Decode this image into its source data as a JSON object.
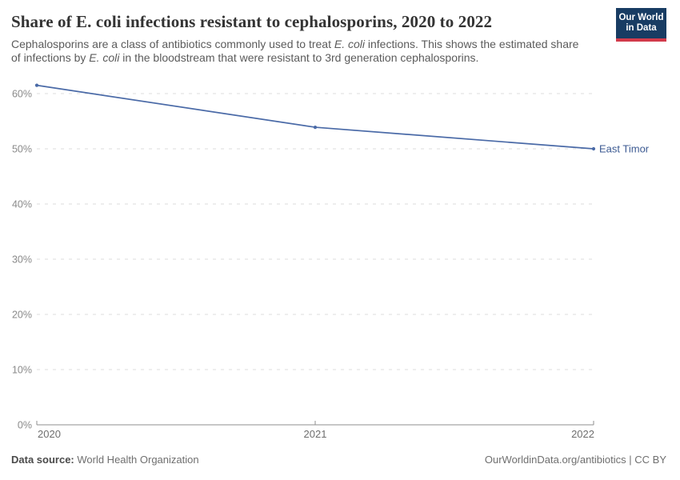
{
  "header": {
    "title": "Share of E. coli infections resistant to cephalosporins, 2020 to 2022",
    "subtitle_segments": [
      {
        "t": "Cephalosporins are a class of antibiotics commonly used to treat ",
        "i": false
      },
      {
        "t": "E. coli",
        "i": true
      },
      {
        "t": " infections. This shows the estimated share of infections by ",
        "i": false
      },
      {
        "t": "E. coli",
        "i": true
      },
      {
        "t": " in the bloodstream that were resistant to 3rd generation cephalosporins.",
        "i": false
      }
    ],
    "logo": {
      "line1": "Our World",
      "line2": "in Data",
      "bg_color": "#183c63",
      "bar_color": "#d33a4b"
    }
  },
  "chart_data": {
    "type": "line",
    "title": "Share of E. coli infections resistant to cephalosporins, 2020 to 2022",
    "xlabel": "",
    "ylabel": "",
    "x": [
      2020,
      2021,
      2022
    ],
    "xticks": [
      2020,
      2021,
      2022
    ],
    "yticks": [
      0,
      10,
      20,
      30,
      40,
      50,
      60
    ],
    "ytick_suffix": "%",
    "ylim": [
      0,
      60
    ],
    "grid": true,
    "gridline_color": "#dcdcdc",
    "axis_color": "#8f8f8f",
    "legend_position": "end-of-line-label",
    "series": [
      {
        "name": "East Timor",
        "values": [
          61.5,
          53.9,
          50
        ],
        "color": "#4a6aa7",
        "label_color": "#3c5a92"
      }
    ]
  },
  "footer": {
    "source_label": "Data source:",
    "source_value": " World Health Organization",
    "right_text": "OurWorldinData.org/antibiotics | CC BY"
  }
}
